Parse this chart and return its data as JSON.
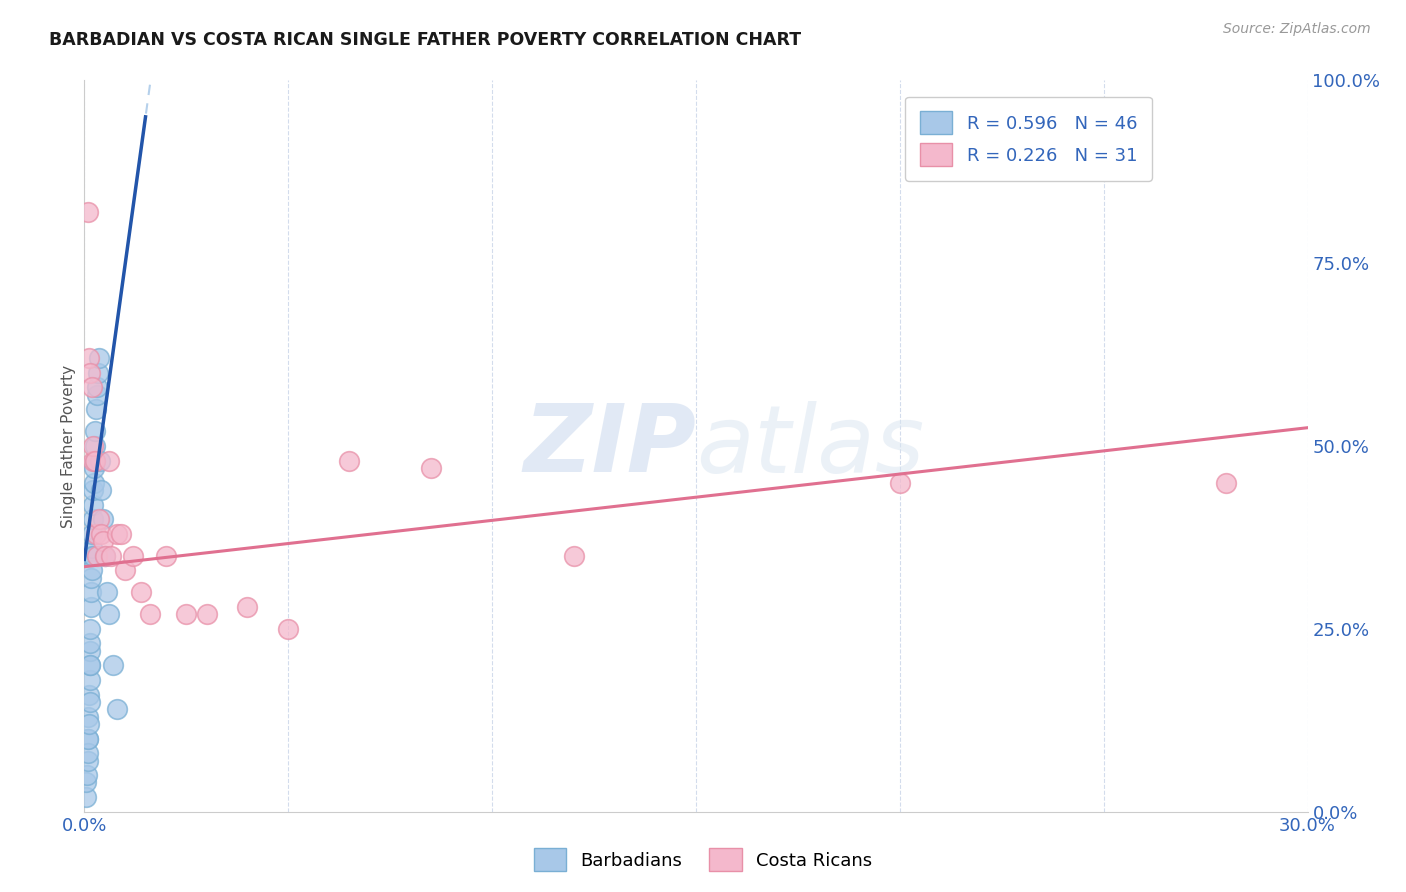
{
  "title": "BARBADIAN VS COSTA RICAN SINGLE FATHER POVERTY CORRELATION CHART",
  "source": "Source: ZipAtlas.com",
  "ylabel": "Single Father Poverty",
  "xlim": [
    0.0,
    0.3
  ],
  "ylim": [
    0.0,
    1.0
  ],
  "xticks": [
    0.0,
    0.05,
    0.1,
    0.15,
    0.2,
    0.25,
    0.3
  ],
  "xtick_labels": [
    "0.0%",
    "",
    "",
    "",
    "",
    "",
    "30.0%"
  ],
  "yticks_right": [
    0.0,
    0.25,
    0.5,
    0.75,
    1.0
  ],
  "ytick_labels_right": [
    "0.0%",
    "25.0%",
    "50.0%",
    "75.0%",
    "100.0%"
  ],
  "blue_face": "#a8c8e8",
  "blue_edge": "#7aafd4",
  "pink_face": "#f4b8cc",
  "pink_edge": "#e890a8",
  "trend_blue": "#2255aa",
  "trend_pink": "#e07090",
  "dash_color": "#a8c8e8",
  "label_color": "#3366bb",
  "R_blue": 0.596,
  "N_blue": 46,
  "R_pink": 0.226,
  "N_pink": 31,
  "barbadians_x": [
    0.0005,
    0.0005,
    0.0007,
    0.0008,
    0.0008,
    0.001,
    0.001,
    0.001,
    0.0012,
    0.0012,
    0.0013,
    0.0013,
    0.0014,
    0.0014,
    0.0015,
    0.0015,
    0.0015,
    0.0016,
    0.0016,
    0.0017,
    0.0017,
    0.0018,
    0.0018,
    0.0019,
    0.002,
    0.002,
    0.0021,
    0.0022,
    0.0023,
    0.0024,
    0.0025,
    0.0026,
    0.0027,
    0.0028,
    0.003,
    0.0032,
    0.0034,
    0.0036,
    0.0038,
    0.0042,
    0.0046,
    0.005,
    0.0055,
    0.006,
    0.007,
    0.008
  ],
  "barbadians_y": [
    0.02,
    0.04,
    0.05,
    0.07,
    0.1,
    0.08,
    0.1,
    0.13,
    0.12,
    0.16,
    0.15,
    0.18,
    0.2,
    0.22,
    0.2,
    0.23,
    0.25,
    0.28,
    0.3,
    0.32,
    0.35,
    0.33,
    0.36,
    0.38,
    0.35,
    0.4,
    0.42,
    0.44,
    0.45,
    0.47,
    0.48,
    0.5,
    0.52,
    0.55,
    0.57,
    0.58,
    0.6,
    0.62,
    0.48,
    0.44,
    0.4,
    0.35,
    0.3,
    0.27,
    0.2,
    0.14
  ],
  "costa_ricans_x": [
    0.0008,
    0.0012,
    0.0015,
    0.0018,
    0.002,
    0.0022,
    0.0025,
    0.0028,
    0.003,
    0.0035,
    0.004,
    0.0045,
    0.005,
    0.006,
    0.0065,
    0.008,
    0.009,
    0.01,
    0.012,
    0.014,
    0.016,
    0.02,
    0.025,
    0.03,
    0.04,
    0.05,
    0.065,
    0.085,
    0.12,
    0.2,
    0.28
  ],
  "costa_ricans_y": [
    0.82,
    0.62,
    0.6,
    0.58,
    0.48,
    0.5,
    0.48,
    0.38,
    0.35,
    0.4,
    0.38,
    0.37,
    0.35,
    0.48,
    0.35,
    0.38,
    0.38,
    0.33,
    0.35,
    0.3,
    0.27,
    0.35,
    0.27,
    0.27,
    0.28,
    0.25,
    0.48,
    0.47,
    0.35,
    0.45,
    0.45
  ],
  "blue_trend_x0": 0.0,
  "blue_trend_y0": 0.345,
  "blue_trend_x1": 0.015,
  "blue_trend_y1": 0.95,
  "pink_trend_x0": 0.0,
  "pink_trend_y0": 0.335,
  "pink_trend_x1": 0.3,
  "pink_trend_y1": 0.525
}
